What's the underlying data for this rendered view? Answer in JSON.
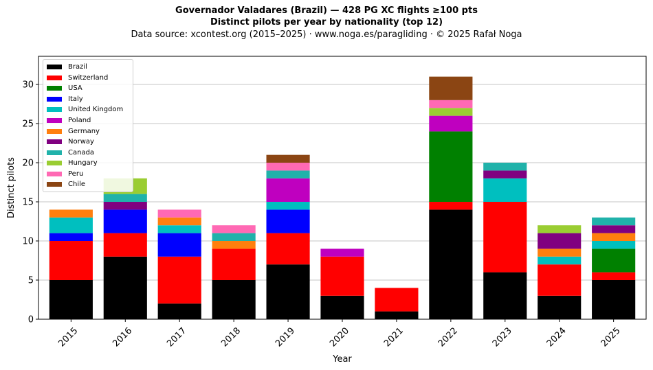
{
  "title_line1": "Governador Valadares (Brazil)  —  428 PG XC flights ≥100 pts",
  "title_line2": "Distinct pilots per year by nationality (top 12)",
  "subtitle": "Data source: xcontest.org (2015–2025)  ·  www.noga.es/paragliding  ·  © 2025 Rafał Noga",
  "chart_data": {
    "type": "bar",
    "stacked": true,
    "title": "Governador Valadares (Brazil)  —  428 PG XC flights ≥100 pts",
    "subtitle": "Distinct pilots per year by nationality (top 12)",
    "xlabel": "Year",
    "ylabel": "Distinct pilots",
    "categories": [
      "2015",
      "2016",
      "2017",
      "2018",
      "2019",
      "2020",
      "2021",
      "2022",
      "2023",
      "2024",
      "2025"
    ],
    "ylim": [
      0,
      33.6
    ],
    "yticks": [
      0,
      5,
      10,
      15,
      20,
      25,
      30
    ],
    "grid": "horizontal",
    "legend_position": "top-left",
    "series": [
      {
        "name": "Brazil",
        "color": "#000000",
        "values": [
          5,
          8,
          2,
          5,
          7,
          3,
          1,
          14,
          6,
          3,
          5
        ]
      },
      {
        "name": "Switzerland",
        "color": "#ff0000",
        "values": [
          5,
          3,
          6,
          4,
          4,
          5,
          3,
          1,
          9,
          4,
          1
        ]
      },
      {
        "name": "USA",
        "color": "#008000",
        "values": [
          0,
          0,
          0,
          0,
          0,
          0,
          0,
          9,
          0,
          0,
          3
        ]
      },
      {
        "name": "Italy",
        "color": "#0000ff",
        "values": [
          1,
          3,
          3,
          0,
          3,
          0,
          0,
          0,
          0,
          0,
          0
        ]
      },
      {
        "name": "United Kingdom",
        "color": "#00bfbf",
        "values": [
          2,
          0,
          1,
          0,
          1,
          0,
          0,
          0,
          3,
          1,
          1
        ]
      },
      {
        "name": "Poland",
        "color": "#bf00bf",
        "values": [
          0,
          0,
          0,
          0,
          3,
          1,
          0,
          2,
          0,
          0,
          0
        ]
      },
      {
        "name": "Germany",
        "color": "#ff7f0e",
        "values": [
          1,
          0,
          1,
          1,
          0,
          0,
          0,
          0,
          0,
          1,
          1
        ]
      },
      {
        "name": "Norway",
        "color": "#800080",
        "values": [
          0,
          1,
          0,
          0,
          0,
          0,
          0,
          0,
          1,
          2,
          1
        ]
      },
      {
        "name": "Canada",
        "color": "#20b2aa",
        "values": [
          0,
          1,
          0,
          1,
          1,
          0,
          0,
          0,
          1,
          0,
          1
        ]
      },
      {
        "name": "Hungary",
        "color": "#9acd32",
        "values": [
          0,
          2,
          0,
          0,
          0,
          0,
          0,
          1,
          0,
          1,
          0
        ]
      },
      {
        "name": "Peru",
        "color": "#ff69b4",
        "values": [
          0,
          0,
          1,
          1,
          1,
          0,
          0,
          1,
          0,
          0,
          0
        ]
      },
      {
        "name": "Chile",
        "color": "#8b4513",
        "values": [
          0,
          0,
          0,
          0,
          1,
          0,
          0,
          3,
          0,
          0,
          0
        ]
      }
    ]
  }
}
